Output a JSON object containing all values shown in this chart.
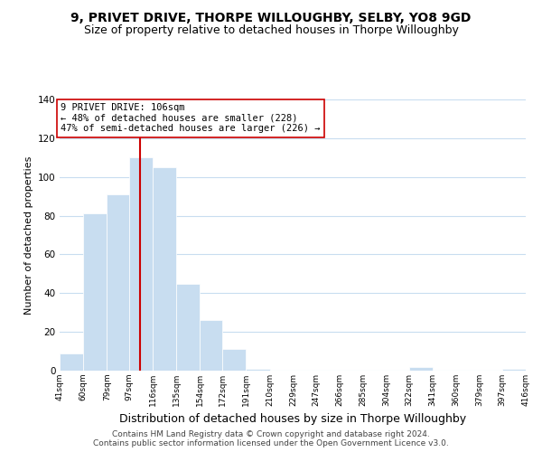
{
  "title": "9, PRIVET DRIVE, THORPE WILLOUGHBY, SELBY, YO8 9GD",
  "subtitle": "Size of property relative to detached houses in Thorpe Willoughby",
  "xlabel": "Distribution of detached houses by size in Thorpe Willoughby",
  "ylabel": "Number of detached properties",
  "bar_edges": [
    41,
    60,
    79,
    97,
    116,
    135,
    154,
    172,
    191,
    210,
    229,
    247,
    266,
    285,
    304,
    322,
    341,
    360,
    379,
    397,
    416
  ],
  "bar_heights": [
    9,
    81,
    91,
    110,
    105,
    45,
    26,
    11,
    1,
    0,
    0,
    0,
    0,
    0,
    0,
    2,
    0,
    0,
    0,
    1
  ],
  "bar_color": "#c8ddf0",
  "bar_edge_color": "#ffffff",
  "vline_x": 106,
  "vline_color": "#cc0000",
  "annotation_title": "9 PRIVET DRIVE: 106sqm",
  "annotation_line1": "← 48% of detached houses are smaller (228)",
  "annotation_line2": "47% of semi-detached houses are larger (226) →",
  "annotation_box_color": "#ffffff",
  "annotation_box_edgecolor": "#cc0000",
  "ylim": [
    0,
    140
  ],
  "yticks": [
    0,
    20,
    40,
    60,
    80,
    100,
    120,
    140
  ],
  "tick_labels": [
    "41sqm",
    "60sqm",
    "79sqm",
    "97sqm",
    "116sqm",
    "135sqm",
    "154sqm",
    "172sqm",
    "191sqm",
    "210sqm",
    "229sqm",
    "247sqm",
    "266sqm",
    "285sqm",
    "304sqm",
    "322sqm",
    "341sqm",
    "360sqm",
    "379sqm",
    "397sqm",
    "416sqm"
  ],
  "footer_line1": "Contains HM Land Registry data © Crown copyright and database right 2024.",
  "footer_line2": "Contains public sector information licensed under the Open Government Licence v3.0.",
  "bg_color": "#ffffff",
  "grid_color": "#c8ddf0",
  "title_fontsize": 10,
  "subtitle_fontsize": 9,
  "xlabel_fontsize": 9,
  "ylabel_fontsize": 8,
  "footer_fontsize": 6.5,
  "annotation_fontsize": 7.5
}
